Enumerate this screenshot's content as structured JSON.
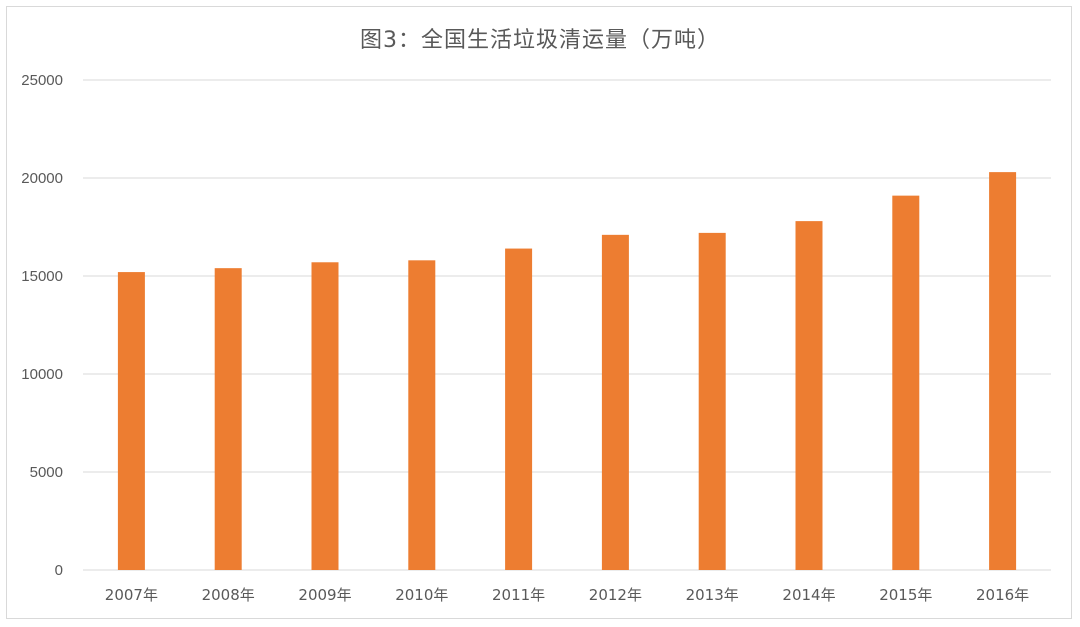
{
  "chart_data": {
    "type": "bar",
    "title": "图3：全国生活垃圾清运量（万吨）",
    "categories": [
      "2007年",
      "2008年",
      "2009年",
      "2010年",
      "2011年",
      "2012年",
      "2013年",
      "2014年",
      "2015年",
      "2016年"
    ],
    "values": [
      15200,
      15400,
      15700,
      15800,
      16400,
      17100,
      17200,
      17800,
      19100,
      20300
    ],
    "ylim": [
      0,
      25000
    ],
    "yticks": [
      0,
      5000,
      10000,
      15000,
      20000,
      25000
    ],
    "grid": true,
    "legend": "none",
    "bar_color": "#ED7D31",
    "grid_color": "#d9d9d9"
  }
}
